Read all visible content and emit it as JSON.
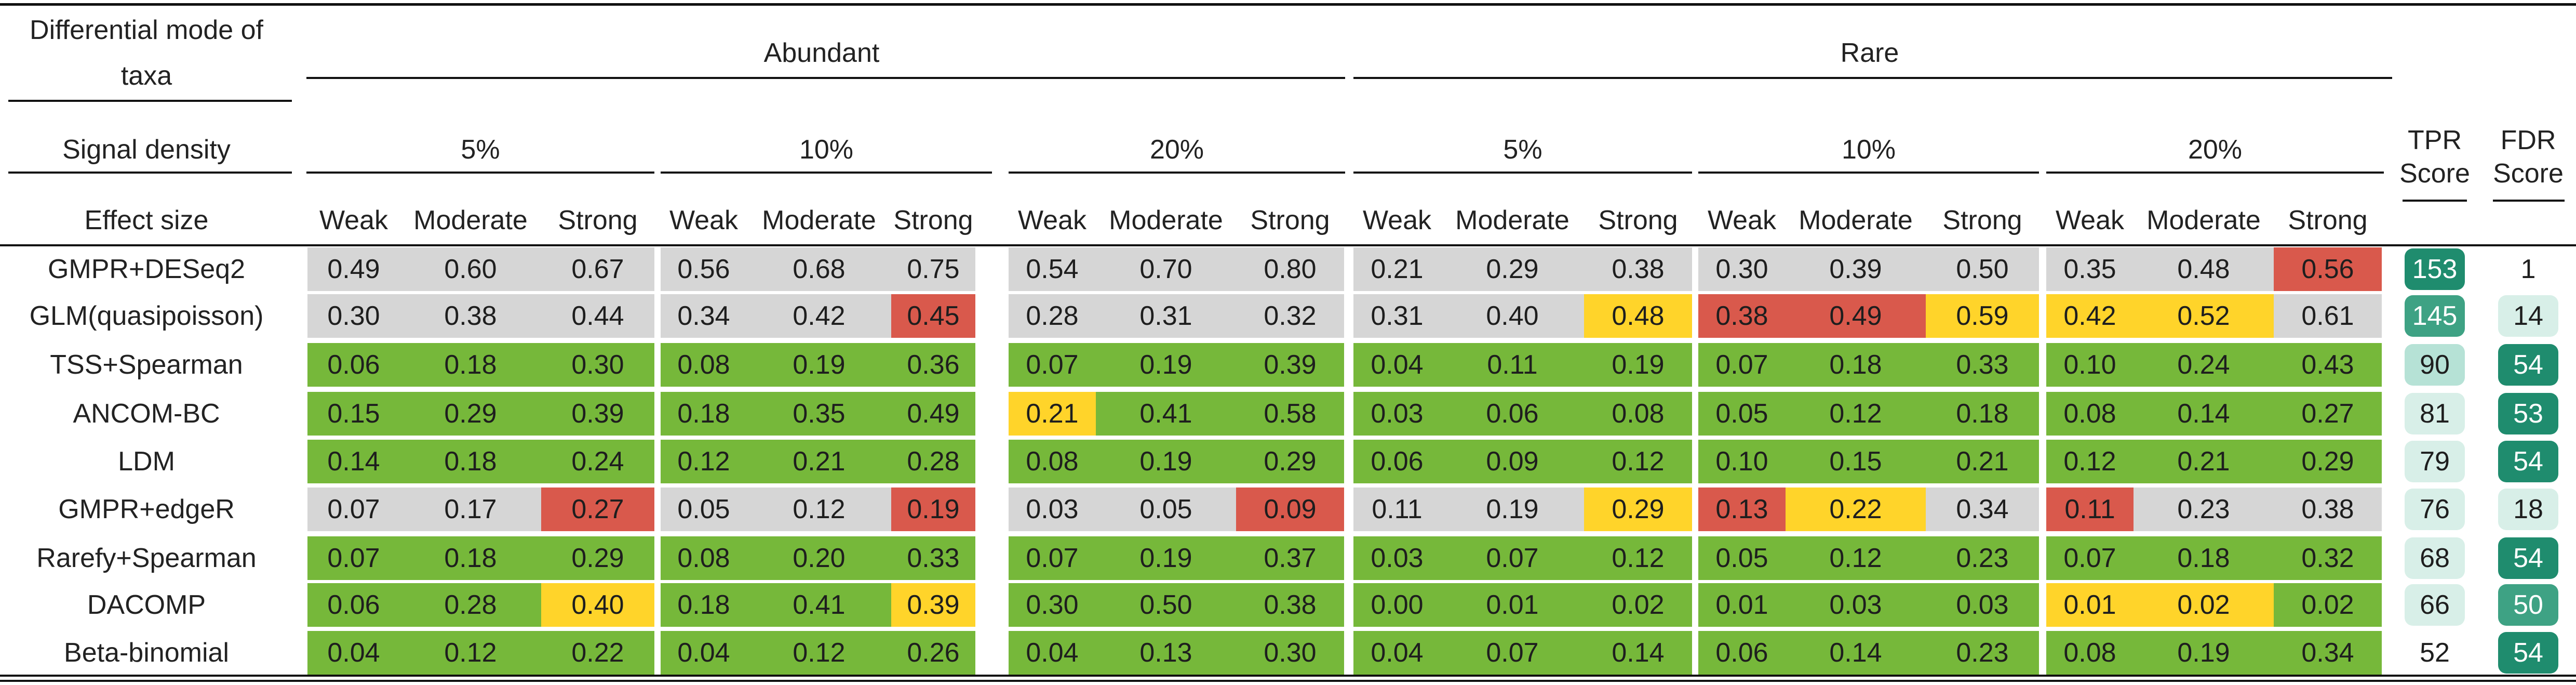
{
  "header": {
    "mode_label_line1": "Differential mode of",
    "mode_label_line2": "taxa",
    "density_label": "Signal density",
    "effect_label": "Effect size",
    "abundant_label": "Abundant",
    "rare_label": "Rare",
    "densities": [
      "5%",
      "10%",
      "20%",
      "5%",
      "10%",
      "20%"
    ],
    "effects": [
      "Weak",
      "Moderate",
      "Strong",
      "Weak",
      "Moderate",
      "Strong",
      "Weak",
      "Moderate",
      "Strong",
      "Weak",
      "Moderate",
      "Strong",
      "Weak",
      "Moderate",
      "Strong",
      "Weak",
      "Moderate",
      "Strong"
    ],
    "tpr_label_line1": "TPR",
    "tpr_label_line2": "Score",
    "fdr_label_line1": "FDR",
    "fdr_label_line2": "Score"
  },
  "palette": {
    "green": "#76b83a",
    "grey": "#d6d6d6",
    "red": "#d9594c",
    "yellow": "#ffd42a",
    "white": "#ffffff",
    "score_dark": "#1f8c6e",
    "score_mid": "#3ea284",
    "score_light": "#b6e2d6",
    "score_pale": "#d8efe8"
  },
  "rows": [
    {
      "method": "GMPR+DESeq2",
      "values": [
        "0.49",
        "0.60",
        "0.67",
        "0.56",
        "0.68",
        "0.75",
        "0.54",
        "0.70",
        "0.80",
        "0.21",
        "0.29",
        "0.38",
        "0.30",
        "0.39",
        "0.50",
        "0.35",
        "0.48",
        "0.56"
      ],
      "colors": [
        "grey",
        "grey",
        "grey",
        "grey",
        "grey",
        "grey",
        "grey",
        "grey",
        "grey",
        "grey",
        "grey",
        "grey",
        "grey",
        "grey",
        "grey",
        "grey",
        "grey",
        "red"
      ],
      "tpr": "153",
      "tpr_color": "score_dark",
      "fdr": "1",
      "fdr_color": "white"
    },
    {
      "method": "GLM(quasipoisson)",
      "values": [
        "0.30",
        "0.38",
        "0.44",
        "0.34",
        "0.42",
        "0.45",
        "0.28",
        "0.31",
        "0.32",
        "0.31",
        "0.40",
        "0.48",
        "0.38",
        "0.49",
        "0.59",
        "0.42",
        "0.52",
        "0.61"
      ],
      "colors": [
        "grey",
        "grey",
        "grey",
        "grey",
        "grey",
        "red",
        "grey",
        "grey",
        "grey",
        "grey",
        "grey",
        "yellow",
        "red",
        "red",
        "yellow",
        "yellow",
        "yellow",
        "grey"
      ],
      "tpr": "145",
      "tpr_color": "score_mid",
      "fdr": "14",
      "fdr_color": "score_pale"
    },
    {
      "method": "TSS+Spearman",
      "values": [
        "0.06",
        "0.18",
        "0.30",
        "0.08",
        "0.19",
        "0.36",
        "0.07",
        "0.19",
        "0.39",
        "0.04",
        "0.11",
        "0.19",
        "0.07",
        "0.18",
        "0.33",
        "0.10",
        "0.24",
        "0.43"
      ],
      "colors": [
        "green",
        "green",
        "green",
        "green",
        "green",
        "green",
        "green",
        "green",
        "green",
        "green",
        "green",
        "green",
        "green",
        "green",
        "green",
        "green",
        "green",
        "green"
      ],
      "tpr": "90",
      "tpr_color": "score_light",
      "fdr": "54",
      "fdr_color": "score_dark"
    },
    {
      "method": "ANCOM-BC",
      "values": [
        "0.15",
        "0.29",
        "0.39",
        "0.18",
        "0.35",
        "0.49",
        "0.21",
        "0.41",
        "0.58",
        "0.03",
        "0.06",
        "0.08",
        "0.05",
        "0.12",
        "0.18",
        "0.08",
        "0.14",
        "0.27"
      ],
      "colors": [
        "green",
        "green",
        "green",
        "green",
        "green",
        "green",
        "yellow",
        "green",
        "green",
        "green",
        "green",
        "green",
        "green",
        "green",
        "green",
        "green",
        "green",
        "green"
      ],
      "tpr": "81",
      "tpr_color": "score_pale",
      "fdr": "53",
      "fdr_color": "score_dark"
    },
    {
      "method": "LDM",
      "values": [
        "0.14",
        "0.18",
        "0.24",
        "0.12",
        "0.21",
        "0.28",
        "0.08",
        "0.19",
        "0.29",
        "0.06",
        "0.09",
        "0.12",
        "0.10",
        "0.15",
        "0.21",
        "0.12",
        "0.21",
        "0.29"
      ],
      "colors": [
        "green",
        "green",
        "green",
        "green",
        "green",
        "green",
        "green",
        "green",
        "green",
        "green",
        "green",
        "green",
        "green",
        "green",
        "green",
        "green",
        "green",
        "green"
      ],
      "tpr": "79",
      "tpr_color": "score_pale",
      "fdr": "54",
      "fdr_color": "score_dark"
    },
    {
      "method": "GMPR+edgeR",
      "values": [
        "0.07",
        "0.17",
        "0.27",
        "0.05",
        "0.12",
        "0.19",
        "0.03",
        "0.05",
        "0.09",
        "0.11",
        "0.19",
        "0.29",
        "0.13",
        "0.22",
        "0.34",
        "0.11",
        "0.23",
        "0.38"
      ],
      "colors": [
        "grey",
        "grey",
        "red",
        "grey",
        "grey",
        "red",
        "grey",
        "grey",
        "red",
        "grey",
        "grey",
        "yellow",
        "red",
        "yellow",
        "grey",
        "red",
        "grey",
        "grey"
      ],
      "tpr": "76",
      "tpr_color": "score_pale",
      "fdr": "18",
      "fdr_color": "score_pale"
    },
    {
      "method": "Rarefy+Spearman",
      "values": [
        "0.07",
        "0.18",
        "0.29",
        "0.08",
        "0.20",
        "0.33",
        "0.07",
        "0.19",
        "0.37",
        "0.03",
        "0.07",
        "0.12",
        "0.05",
        "0.12",
        "0.23",
        "0.07",
        "0.18",
        "0.32"
      ],
      "colors": [
        "green",
        "green",
        "green",
        "green",
        "green",
        "green",
        "green",
        "green",
        "green",
        "green",
        "green",
        "green",
        "green",
        "green",
        "green",
        "green",
        "green",
        "green"
      ],
      "tpr": "68",
      "tpr_color": "score_pale",
      "fdr": "54",
      "fdr_color": "score_dark"
    },
    {
      "method": "DACOMP",
      "values": [
        "0.06",
        "0.28",
        "0.40",
        "0.18",
        "0.41",
        "0.39",
        "0.30",
        "0.50",
        "0.38",
        "0.00",
        "0.01",
        "0.02",
        "0.01",
        "0.03",
        "0.03",
        "0.01",
        "0.02",
        "0.02"
      ],
      "colors": [
        "green",
        "green",
        "yellow",
        "green",
        "green",
        "yellow",
        "green",
        "green",
        "green",
        "green",
        "green",
        "green",
        "green",
        "green",
        "green",
        "yellow",
        "yellow",
        "green"
      ],
      "tpr": "66",
      "tpr_color": "score_pale",
      "fdr": "50",
      "fdr_color": "score_mid"
    },
    {
      "method": "Beta-binomial",
      "values": [
        "0.04",
        "0.12",
        "0.22",
        "0.04",
        "0.12",
        "0.26",
        "0.04",
        "0.13",
        "0.30",
        "0.04",
        "0.07",
        "0.14",
        "0.06",
        "0.14",
        "0.23",
        "0.08",
        "0.19",
        "0.34"
      ],
      "colors": [
        "green",
        "green",
        "green",
        "green",
        "green",
        "green",
        "green",
        "green",
        "green",
        "green",
        "green",
        "green",
        "green",
        "green",
        "green",
        "green",
        "green",
        "green"
      ],
      "tpr": "52",
      "tpr_color": "white",
      "fdr": "54",
      "fdr_color": "score_dark"
    }
  ]
}
